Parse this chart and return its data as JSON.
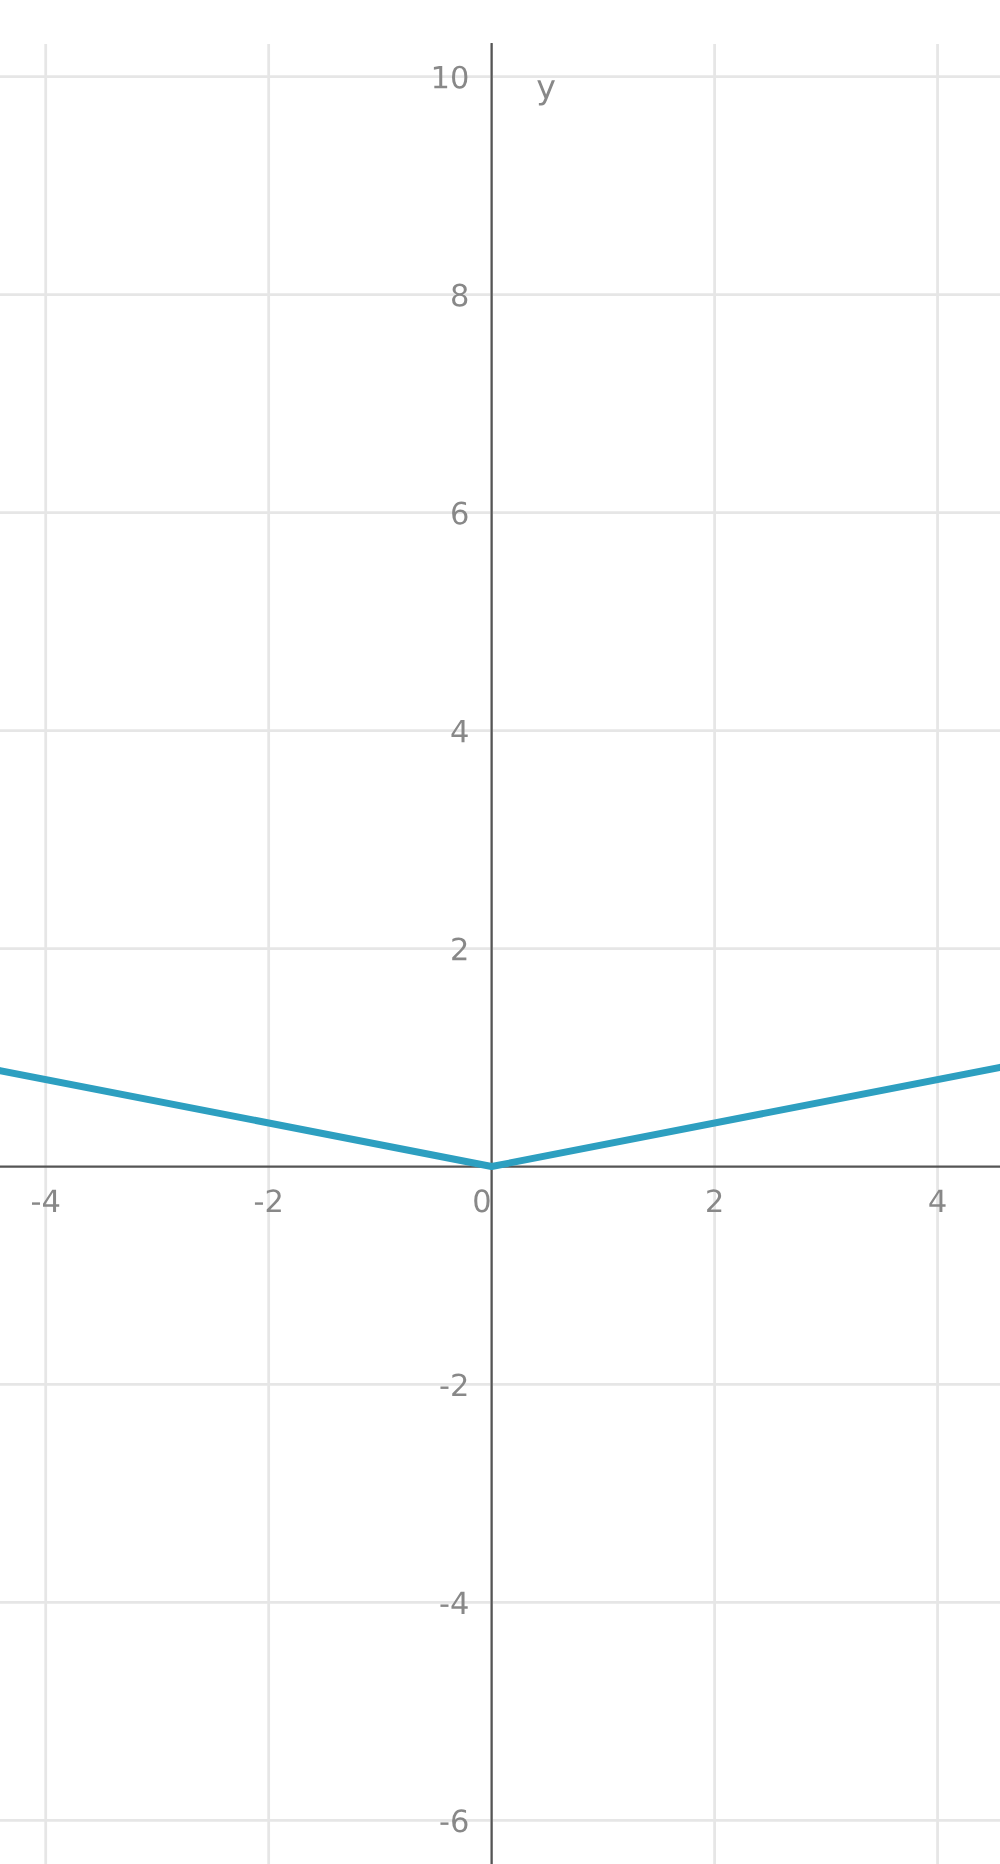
{
  "chart_data": {
    "type": "line",
    "ylabel": "y",
    "x": [
      -4.41,
      0,
      4.56
    ],
    "series": [
      {
        "color": "#2d9fc0",
        "values": [
          0.88,
          0,
          0.91
        ]
      }
    ],
    "xlim": [
      -4.41,
      4.56
    ],
    "ylim": [
      -6.4,
      10.3
    ],
    "xticks": [
      -4,
      -2,
      0,
      2,
      4
    ],
    "yticks": [
      -6,
      -4,
      -2,
      2,
      4,
      6,
      8,
      10
    ],
    "grid": true,
    "marker": "none",
    "line_style": "solid"
  }
}
